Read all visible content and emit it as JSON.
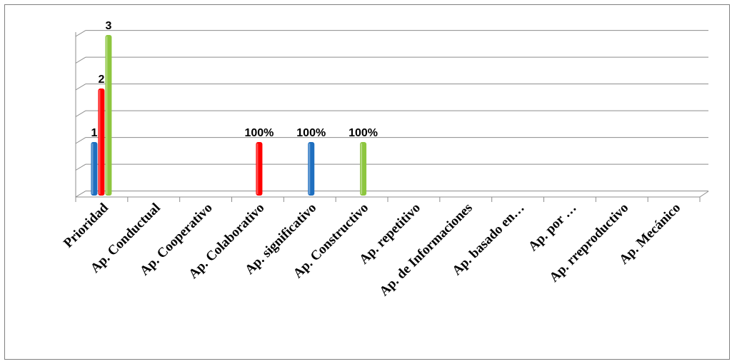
{
  "chart_data": {
    "type": "bar",
    "categories": [
      "Prioridad",
      "Ap. Conductual",
      "Ap. Cooperativo",
      "Ap. Colaborativo",
      "Ap. significativo",
      "Ap. Constructivo",
      "Ap. repetitivo",
      "Ap. de Informaciones",
      "Ap. basado en…",
      "Ap.  por …",
      "Ap. rreproductivo",
      "Ap. Mecánico"
    ],
    "series": [
      {
        "color": "#1f6fbf",
        "values": [
          1,
          null,
          null,
          null,
          1,
          null,
          null,
          null,
          null,
          null,
          null,
          null
        ]
      },
      {
        "color": "#ff0000",
        "values": [
          2,
          null,
          null,
          1,
          null,
          null,
          null,
          null,
          null,
          null,
          null,
          null
        ]
      },
      {
        "color": "#8dc63f",
        "values": [
          3,
          null,
          null,
          null,
          null,
          1,
          null,
          null,
          null,
          null,
          null,
          null
        ]
      }
    ],
    "data_labels": [
      {
        "category": "Prioridad",
        "series": 0,
        "text": "1"
      },
      {
        "category": "Prioridad",
        "series": 1,
        "text": "2"
      },
      {
        "category": "Prioridad",
        "series": 2,
        "text": "3"
      },
      {
        "category": "Ap. Colaborativo",
        "series": 1,
        "text": "100%"
      },
      {
        "category": "Ap. significativo",
        "series": 0,
        "text": "100%"
      },
      {
        "category": "Ap. Constructivo",
        "series": 2,
        "text": "100%"
      }
    ],
    "ylim": [
      0,
      3
    ],
    "grid": true,
    "legend": "none",
    "title": "",
    "xlabel": "",
    "ylabel": ""
  }
}
